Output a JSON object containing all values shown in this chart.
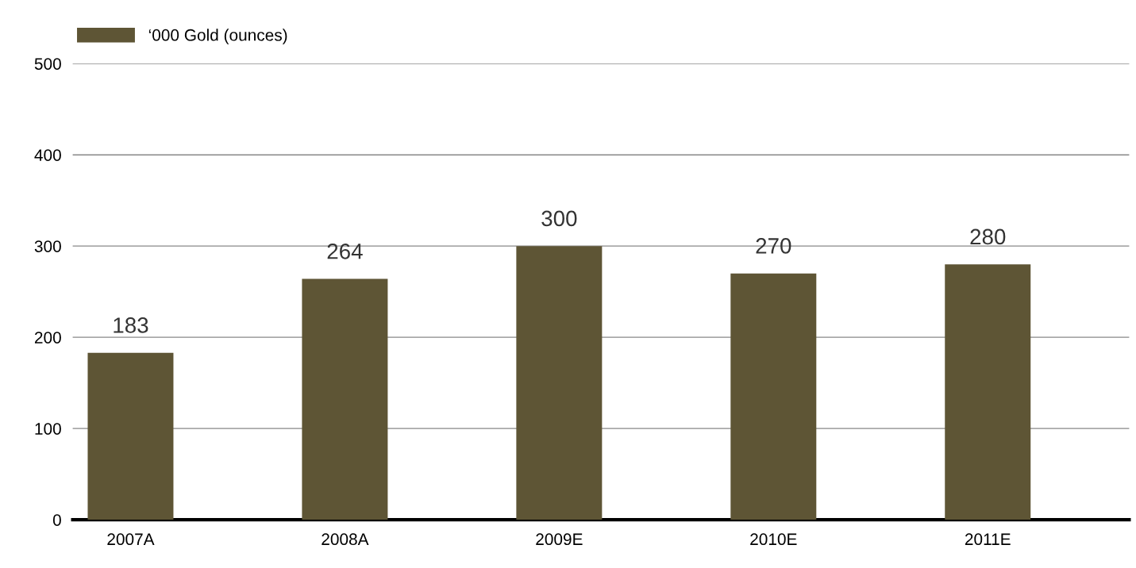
{
  "chart_data": {
    "type": "bar",
    "categories": [
      "2007A",
      "2008A",
      "2009E",
      "2010E",
      "2011E"
    ],
    "series": [
      {
        "name": "‘000 Gold (ounces)",
        "color": "#5e5535",
        "values": [
          183,
          264,
          300,
          270,
          280
        ]
      }
    ],
    "ylim": [
      0,
      500
    ],
    "yticks": [
      0,
      100,
      200,
      300,
      400,
      500
    ],
    "grid": "y",
    "legend": "top left",
    "data_labels": true
  }
}
